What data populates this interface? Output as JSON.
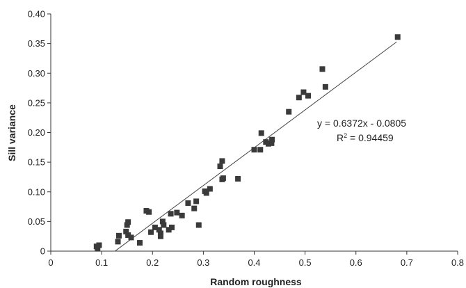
{
  "chart_data": {
    "type": "scatter",
    "title": "",
    "xlabel": "Random roughness",
    "ylabel": "Sill variance",
    "xlim": [
      0,
      0.8
    ],
    "ylim": [
      0,
      0.4
    ],
    "x_ticks": [
      0,
      0.1,
      0.2,
      0.3,
      0.4,
      0.5,
      0.6,
      0.7,
      0.8
    ],
    "x_tick_labels": [
      "0",
      "0.1",
      "0.2",
      "0.3",
      "0.4",
      "0.5",
      "0.6",
      "0.7",
      "0.8"
    ],
    "y_ticks": [
      0,
      0.05,
      0.1,
      0.15,
      0.2,
      0.25,
      0.3,
      0.35,
      0.4
    ],
    "y_tick_labels": [
      "0",
      "0.05",
      "0.10",
      "0.15",
      "0.20",
      "0.25",
      "0.30",
      "0.35",
      "0.40"
    ],
    "grid": false,
    "marker": "square",
    "marker_color": "#3a3a3a",
    "line_color": "#444444",
    "trendline": {
      "slope": 0.6372,
      "intercept": -0.0805,
      "x_range": [
        0.126,
        0.68
      ]
    },
    "annotations": {
      "equation": "y = 0.6372x - 0.0805",
      "r2_prefix": "R",
      "r2_sup": "2",
      "r2_value": " = 0.94459"
    },
    "points": [
      {
        "x": 0.09,
        "y": 0.008
      },
      {
        "x": 0.092,
        "y": 0.004
      },
      {
        "x": 0.095,
        "y": 0.01
      },
      {
        "x": 0.132,
        "y": 0.016
      },
      {
        "x": 0.134,
        "y": 0.026
      },
      {
        "x": 0.148,
        "y": 0.033
      },
      {
        "x": 0.15,
        "y": 0.044
      },
      {
        "x": 0.152,
        "y": 0.049
      },
      {
        "x": 0.152,
        "y": 0.027
      },
      {
        "x": 0.158,
        "y": 0.023
      },
      {
        "x": 0.175,
        "y": 0.014
      },
      {
        "x": 0.188,
        "y": 0.068
      },
      {
        "x": 0.193,
        "y": 0.066
      },
      {
        "x": 0.197,
        "y": 0.032
      },
      {
        "x": 0.205,
        "y": 0.04
      },
      {
        "x": 0.213,
        "y": 0.036
      },
      {
        "x": 0.216,
        "y": 0.025
      },
      {
        "x": 0.216,
        "y": 0.03
      },
      {
        "x": 0.22,
        "y": 0.05
      },
      {
        "x": 0.222,
        "y": 0.044
      },
      {
        "x": 0.232,
        "y": 0.036
      },
      {
        "x": 0.236,
        "y": 0.063
      },
      {
        "x": 0.238,
        "y": 0.04
      },
      {
        "x": 0.248,
        "y": 0.065
      },
      {
        "x": 0.258,
        "y": 0.06
      },
      {
        "x": 0.27,
        "y": 0.081
      },
      {
        "x": 0.282,
        "y": 0.072
      },
      {
        "x": 0.286,
        "y": 0.084
      },
      {
        "x": 0.291,
        "y": 0.044
      },
      {
        "x": 0.303,
        "y": 0.101
      },
      {
        "x": 0.306,
        "y": 0.098
      },
      {
        "x": 0.313,
        "y": 0.105
      },
      {
        "x": 0.333,
        "y": 0.143
      },
      {
        "x": 0.337,
        "y": 0.152
      },
      {
        "x": 0.337,
        "y": 0.121
      },
      {
        "x": 0.339,
        "y": 0.123
      },
      {
        "x": 0.368,
        "y": 0.122
      },
      {
        "x": 0.4,
        "y": 0.171
      },
      {
        "x": 0.412,
        "y": 0.171
      },
      {
        "x": 0.414,
        "y": 0.199
      },
      {
        "x": 0.423,
        "y": 0.184
      },
      {
        "x": 0.428,
        "y": 0.181
      },
      {
        "x": 0.434,
        "y": 0.182
      },
      {
        "x": 0.435,
        "y": 0.188
      },
      {
        "x": 0.468,
        "y": 0.235
      },
      {
        "x": 0.488,
        "y": 0.259
      },
      {
        "x": 0.497,
        "y": 0.268
      },
      {
        "x": 0.506,
        "y": 0.262
      },
      {
        "x": 0.534,
        "y": 0.307
      },
      {
        "x": 0.54,
        "y": 0.277
      },
      {
        "x": 0.682,
        "y": 0.361
      }
    ]
  }
}
